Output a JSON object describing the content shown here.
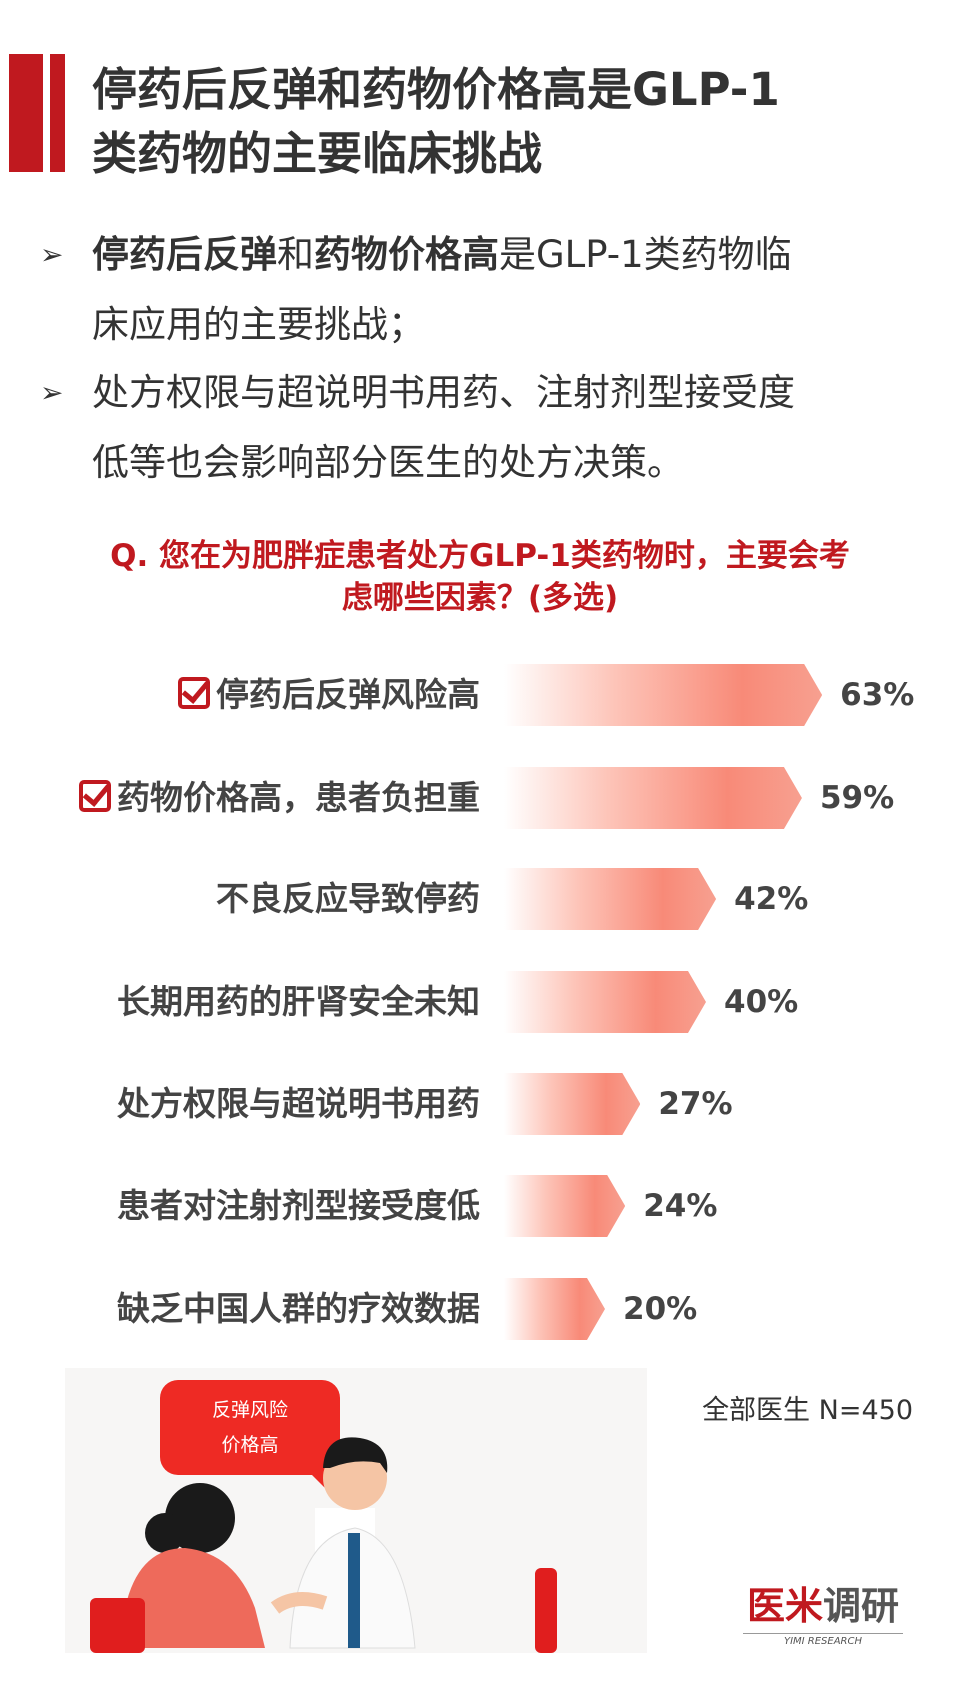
{
  "title": {
    "line1": "停药后反弹和药物价格高是GLP-1",
    "line2": "类药物的主要临床挑战"
  },
  "bullets": [
    {
      "bold1": "停药后反弹",
      "mid": "和",
      "bold2": "药物价格高",
      "rest1": "是GLP-1类药物临",
      "rest2": "床应用的主要挑战；"
    },
    {
      "line1": "处方权限与超说明书用药、注射剂型接受度",
      "line2": "低等也会影响部分医生的处方决策。"
    }
  ],
  "question": {
    "line1": "Q. 您在为肥胖症患者处方GLP-1类药物时，主要会考",
    "line2": "虑哪些因素？(多选)"
  },
  "chart_data": {
    "type": "bar",
    "orientation": "horizontal",
    "categories": [
      "停药后反弹风险高",
      "药物价格高，患者负担重",
      "不良反应导致停药",
      "长期用药的肝肾安全未知",
      "处方权限与超说明书用药",
      "患者对注射剂型接受度低",
      "缺乏中国人群的疗效数据"
    ],
    "values": [
      63,
      59,
      42,
      40,
      27,
      24,
      20
    ],
    "labels": [
      "63%",
      "59%",
      "42%",
      "40%",
      "27%",
      "24%",
      "20%"
    ],
    "highlighted": [
      true,
      true,
      false,
      false,
      false,
      false,
      false
    ],
    "unit": "%"
  },
  "sample_note": "全部医生 N=450",
  "illustration": {
    "bubble_line1": "反弹风险",
    "bubble_line2": "价格高"
  },
  "logo": {
    "cn": "医米调研",
    "en": "YIMI RESEARCH"
  },
  "colors": {
    "accent": "#c0191f",
    "bar": "#f88a78"
  }
}
